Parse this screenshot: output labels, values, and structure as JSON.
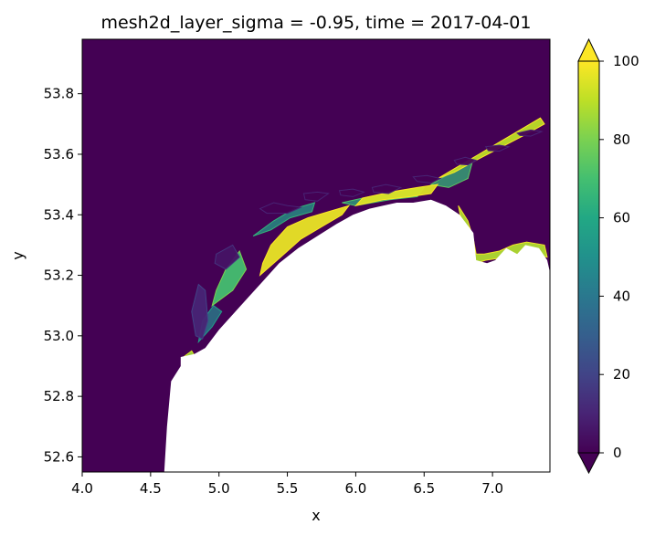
{
  "chart_data": {
    "type": "heatmap",
    "title": "mesh2d_layer_sigma = -0.95, time = 2017-04-01",
    "xlabel": "x",
    "ylabel": "y",
    "xlim": [
      4.0,
      7.42
    ],
    "ylim": [
      52.55,
      53.98
    ],
    "xticks": [
      {
        "value": 4.0,
        "label": "4.0"
      },
      {
        "value": 4.5,
        "label": "4.5"
      },
      {
        "value": 5.0,
        "label": "5.0"
      },
      {
        "value": 5.5,
        "label": "5.5"
      },
      {
        "value": 6.0,
        "label": "6.0"
      },
      {
        "value": 6.5,
        "label": "6.5"
      },
      {
        "value": 7.0,
        "label": "7.0"
      }
    ],
    "yticks": [
      {
        "value": 52.6,
        "label": "52.6"
      },
      {
        "value": 52.8,
        "label": "52.8"
      },
      {
        "value": 53.0,
        "label": "53.0"
      },
      {
        "value": 53.2,
        "label": "53.2"
      },
      {
        "value": 53.4,
        "label": "53.4"
      },
      {
        "value": 53.6,
        "label": "53.6"
      },
      {
        "value": 53.8,
        "label": "53.8"
      }
    ],
    "grid": false,
    "colormap": "viridis",
    "colorbar": {
      "range": [
        0,
        100
      ],
      "extend": "both",
      "ticks": [
        {
          "value": 0,
          "label": "0"
        },
        {
          "value": 20,
          "label": "20"
        },
        {
          "value": 40,
          "label": "40"
        },
        {
          "value": 60,
          "label": "60"
        },
        {
          "value": 80,
          "label": "80"
        },
        {
          "value": 100,
          "label": "100"
        }
      ]
    },
    "coastline": [
      [
        4.6,
        52.55
      ],
      [
        4.62,
        52.7
      ],
      [
        4.65,
        52.85
      ],
      [
        4.72,
        52.9
      ],
      [
        4.72,
        52.93
      ],
      [
        4.82,
        52.94
      ],
      [
        4.9,
        52.96
      ],
      [
        5.0,
        53.02
      ],
      [
        5.12,
        53.08
      ],
      [
        5.22,
        53.13
      ],
      [
        5.32,
        53.18
      ],
      [
        5.44,
        53.24
      ],
      [
        5.58,
        53.29
      ],
      [
        5.72,
        53.33
      ],
      [
        5.86,
        53.37
      ],
      [
        5.98,
        53.4
      ],
      [
        6.1,
        53.42
      ],
      [
        6.2,
        53.43
      ],
      [
        6.3,
        53.44
      ],
      [
        6.42,
        53.44
      ],
      [
        6.55,
        53.45
      ],
      [
        6.66,
        53.43
      ],
      [
        6.76,
        53.4
      ],
      [
        6.86,
        53.34
      ],
      [
        6.88,
        53.25
      ],
      [
        6.96,
        53.24
      ],
      [
        7.02,
        53.25
      ],
      [
        7.1,
        53.29
      ],
      [
        7.18,
        53.27
      ],
      [
        7.24,
        53.3
      ],
      [
        7.34,
        53.29
      ],
      [
        7.4,
        53.25
      ],
      [
        7.42,
        53.21
      ],
      [
        7.42,
        52.55
      ]
    ],
    "features": [
      {
        "kind": "land",
        "points": [
          [
            5.3,
            53.42
          ],
          [
            5.4,
            53.44
          ],
          [
            5.5,
            53.43
          ],
          [
            5.6,
            53.425
          ],
          [
            5.5,
            53.405
          ],
          [
            5.35,
            53.405
          ]
        ],
        "value": 0
      },
      {
        "kind": "land",
        "points": [
          [
            5.62,
            53.47
          ],
          [
            5.72,
            53.475
          ],
          [
            5.8,
            53.47
          ],
          [
            5.72,
            53.445
          ],
          [
            5.63,
            53.45
          ]
        ],
        "value": 0
      },
      {
        "kind": "land",
        "points": [
          [
            5.88,
            53.48
          ],
          [
            5.98,
            53.485
          ],
          [
            6.06,
            53.475
          ],
          [
            5.98,
            53.46
          ],
          [
            5.89,
            53.465
          ]
        ],
        "value": 0
      },
      {
        "kind": "land",
        "points": [
          [
            6.12,
            53.49
          ],
          [
            6.22,
            53.5
          ],
          [
            6.33,
            53.49
          ],
          [
            6.24,
            53.47
          ],
          [
            6.13,
            53.475
          ]
        ],
        "value": 0
      },
      {
        "kind": "land",
        "points": [
          [
            6.42,
            53.525
          ],
          [
            6.52,
            53.53
          ],
          [
            6.62,
            53.52
          ],
          [
            6.55,
            53.505
          ],
          [
            6.45,
            53.51
          ]
        ],
        "value": 0
      },
      {
        "kind": "land",
        "points": [
          [
            6.72,
            53.58
          ],
          [
            6.8,
            53.59
          ],
          [
            6.88,
            53.58
          ],
          [
            6.82,
            53.565
          ],
          [
            6.74,
            53.567
          ]
        ],
        "value": 0
      },
      {
        "kind": "land",
        "points": [
          [
            6.95,
            53.625
          ],
          [
            7.05,
            53.63
          ],
          [
            7.12,
            53.625
          ],
          [
            7.05,
            53.61
          ],
          [
            6.97,
            53.612
          ]
        ],
        "value": 0
      },
      {
        "kind": "land",
        "points": [
          [
            7.18,
            53.67
          ],
          [
            7.28,
            53.68
          ],
          [
            7.36,
            53.675
          ],
          [
            7.28,
            53.66
          ],
          [
            7.2,
            53.662
          ]
        ],
        "value": 0
      },
      {
        "kind": "land",
        "points": [
          [
            4.85,
            53.17
          ],
          [
            4.9,
            53.15
          ],
          [
            4.92,
            53.05
          ],
          [
            4.88,
            52.99
          ],
          [
            4.83,
            53.0
          ],
          [
            4.8,
            53.08
          ]
        ],
        "value": 10
      },
      {
        "kind": "land",
        "points": [
          [
            4.98,
            53.27
          ],
          [
            5.1,
            53.3
          ],
          [
            5.15,
            53.26
          ],
          [
            5.05,
            53.22
          ],
          [
            4.97,
            53.24
          ]
        ],
        "value": 5
      },
      {
        "kind": "flat",
        "points": [
          [
            5.3,
            53.2
          ],
          [
            5.45,
            53.26
          ],
          [
            5.6,
            53.32
          ],
          [
            5.75,
            53.36
          ],
          [
            5.9,
            53.4
          ],
          [
            5.95,
            53.43
          ],
          [
            5.8,
            53.41
          ],
          [
            5.65,
            53.39
          ],
          [
            5.5,
            53.36
          ],
          [
            5.38,
            53.3
          ],
          [
            5.32,
            53.24
          ]
        ],
        "value": 97
      },
      {
        "kind": "flat",
        "points": [
          [
            6.0,
            53.43
          ],
          [
            6.2,
            53.45
          ],
          [
            6.4,
            53.46
          ],
          [
            6.55,
            53.47
          ],
          [
            6.6,
            53.5
          ],
          [
            6.45,
            53.49
          ],
          [
            6.25,
            53.475
          ],
          [
            6.05,
            53.455
          ]
        ],
        "value": 95
      },
      {
        "kind": "flat",
        "points": [
          [
            6.6,
            53.52
          ],
          [
            6.75,
            53.56
          ],
          [
            6.9,
            53.6
          ],
          [
            7.05,
            53.64
          ],
          [
            7.2,
            53.68
          ],
          [
            7.35,
            53.72
          ],
          [
            7.38,
            53.7
          ],
          [
            7.22,
            53.66
          ],
          [
            7.05,
            53.62
          ],
          [
            6.88,
            53.58
          ],
          [
            6.72,
            53.54
          ]
        ],
        "value": 90
      },
      {
        "kind": "flat",
        "points": [
          [
            4.95,
            53.1
          ],
          [
            5.1,
            53.15
          ],
          [
            5.2,
            53.22
          ],
          [
            5.15,
            53.28
          ],
          [
            5.05,
            53.22
          ],
          [
            4.98,
            53.15
          ]
        ],
        "value": 70
      },
      {
        "kind": "flat",
        "points": [
          [
            6.75,
            53.43
          ],
          [
            6.82,
            53.38
          ],
          [
            6.86,
            53.32
          ],
          [
            6.88,
            53.27
          ],
          [
            6.94,
            53.27
          ],
          [
            7.05,
            53.28
          ],
          [
            7.15,
            53.3
          ],
          [
            7.25,
            53.31
          ],
          [
            7.38,
            53.3
          ],
          [
            7.4,
            53.26
          ],
          [
            7.3,
            53.27
          ],
          [
            7.1,
            53.26
          ],
          [
            6.95,
            53.25
          ],
          [
            6.88,
            53.24
          ],
          [
            6.8,
            53.32
          ]
        ],
        "value": 88
      },
      {
        "kind": "flat",
        "points": [
          [
            4.74,
            52.93
          ],
          [
            4.8,
            52.95
          ],
          [
            4.84,
            52.92
          ],
          [
            4.78,
            52.905
          ]
        ],
        "value": 85
      },
      {
        "kind": "channel",
        "points": [
          [
            5.25,
            53.33
          ],
          [
            5.4,
            53.38
          ],
          [
            5.55,
            53.42
          ],
          [
            5.7,
            53.44
          ],
          [
            5.68,
            53.41
          ],
          [
            5.52,
            53.39
          ],
          [
            5.38,
            53.35
          ]
        ],
        "value": 55
      },
      {
        "kind": "channel",
        "points": [
          [
            5.9,
            53.44
          ],
          [
            6.1,
            53.46
          ],
          [
            6.35,
            53.48
          ],
          [
            6.5,
            53.49
          ],
          [
            6.45,
            53.46
          ],
          [
            6.25,
            53.45
          ],
          [
            6.0,
            53.43
          ]
        ],
        "value": 62
      },
      {
        "kind": "channel",
        "points": [
          [
            6.55,
            53.5
          ],
          [
            6.7,
            53.54
          ],
          [
            6.85,
            53.57
          ],
          [
            6.82,
            53.52
          ],
          [
            6.68,
            53.49
          ]
        ],
        "value": 65
      },
      {
        "kind": "channel",
        "points": [
          [
            4.85,
            52.98
          ],
          [
            4.95,
            53.03
          ],
          [
            5.02,
            53.08
          ],
          [
            4.96,
            53.1
          ],
          [
            4.88,
            53.05
          ]
        ],
        "value": 45
      }
    ]
  }
}
